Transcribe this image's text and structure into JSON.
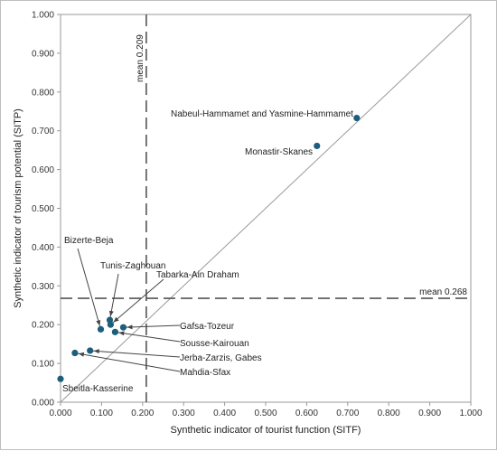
{
  "chart_data": {
    "type": "scatter",
    "xlabel": "Synthetic indicator of tourist function (SITF)",
    "ylabel": "Synthetic indicator of tourism potential (SITP)",
    "xlim": [
      0,
      1
    ],
    "ylim": [
      0,
      1
    ],
    "grid": false,
    "x_ticks": [
      "0.000",
      "0.100",
      "0.200",
      "0.300",
      "0.400",
      "0.500",
      "0.600",
      "0.700",
      "0.800",
      "0.900",
      "1.000"
    ],
    "y_ticks": [
      "0.000",
      "0.100",
      "0.200",
      "0.300",
      "0.400",
      "0.500",
      "0.600",
      "0.700",
      "0.800",
      "0.900",
      "1.000"
    ],
    "point_color": "#1b5f7d",
    "reference_lines": [
      {
        "orientation": "vertical",
        "value": 0.209,
        "label": "mean 0.209"
      },
      {
        "orientation": "horizontal",
        "value": 0.268,
        "label": "mean 0.268"
      }
    ],
    "diagonal": true,
    "points": [
      {
        "label": "Nabeul-Hammamet and Yasmine-Hammamet",
        "x": 0.722,
        "y": 0.733
      },
      {
        "label": "Monastir-Skanes",
        "x": 0.625,
        "y": 0.661
      },
      {
        "label": "Bizerte-Beja",
        "x": 0.098,
        "y": 0.188
      },
      {
        "label": "Tunis-Zaghouan",
        "x": 0.12,
        "y": 0.212
      },
      {
        "label": "Tabarka-Ain Draham",
        "x": 0.122,
        "y": 0.2
      },
      {
        "label": "Gafsa-Tozeur",
        "x": 0.153,
        "y": 0.193
      },
      {
        "label": "Sousse-Kairouan",
        "x": 0.133,
        "y": 0.181
      },
      {
        "label": "Jerba-Zarzis, Gabes",
        "x": 0.072,
        "y": 0.133
      },
      {
        "label": "Mahdia-Sfax",
        "x": 0.035,
        "y": 0.127
      },
      {
        "label": "Sbeitla-Kasserine",
        "x": 0.0,
        "y": 0.06
      }
    ]
  }
}
